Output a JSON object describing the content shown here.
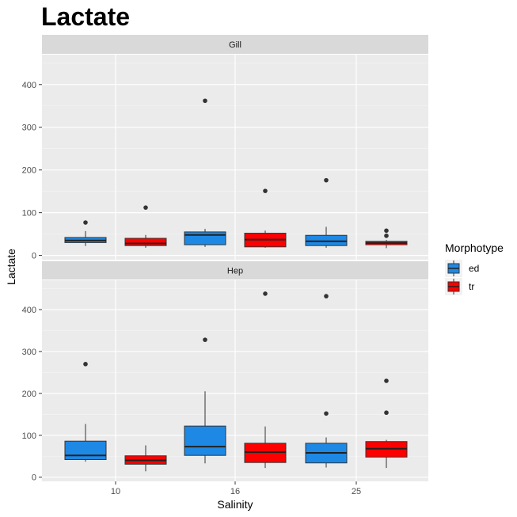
{
  "chart_data": {
    "type": "boxplot",
    "title": "Lactate",
    "xlabel": "Salinity",
    "ylabel": "Lactate",
    "categories": [
      "10",
      "16",
      "25"
    ],
    "ylim": [
      -10,
      470
    ],
    "yticks": [
      0,
      100,
      200,
      300,
      400
    ],
    "grid": true,
    "legend": {
      "title": "Morphotype",
      "position": "right",
      "entries": [
        {
          "name": "ed",
          "color": "#1E88E5"
        },
        {
          "name": "tr",
          "color": "#FF0000"
        }
      ]
    },
    "panels": [
      {
        "name": "Gill",
        "boxes": [
          {
            "x": "10",
            "group": "ed",
            "lower_whisker": 22,
            "q1": 30,
            "median": 35,
            "q3": 42,
            "upper_whisker": 57,
            "outliers": [
              77
            ]
          },
          {
            "x": "10",
            "group": "tr",
            "lower_whisker": 18,
            "q1": 23,
            "median": 28,
            "q3": 40,
            "upper_whisker": 48,
            "outliers": [
              112
            ]
          },
          {
            "x": "16",
            "group": "ed",
            "lower_whisker": 20,
            "q1": 25,
            "median": 48,
            "q3": 55,
            "upper_whisker": 62,
            "outliers": [
              362
            ]
          },
          {
            "x": "16",
            "group": "tr",
            "lower_whisker": 18,
            "q1": 20,
            "median": 37,
            "q3": 52,
            "upper_whisker": 58,
            "outliers": [
              151
            ]
          },
          {
            "x": "25",
            "group": "ed",
            "lower_whisker": 18,
            "q1": 23,
            "median": 33,
            "q3": 47,
            "upper_whisker": 67,
            "outliers": [
              176
            ]
          },
          {
            "x": "25",
            "group": "tr",
            "lower_whisker": 17,
            "q1": 25,
            "median": 29,
            "q3": 33,
            "upper_whisker": 36,
            "outliers": [
              46,
              58
            ]
          }
        ]
      },
      {
        "name": "Hep",
        "boxes": [
          {
            "x": "10",
            "group": "ed",
            "lower_whisker": 37,
            "q1": 42,
            "median": 52,
            "q3": 86,
            "upper_whisker": 127,
            "outliers": [
              270
            ]
          },
          {
            "x": "10",
            "group": "tr",
            "lower_whisker": 14,
            "q1": 31,
            "median": 40,
            "q3": 51,
            "upper_whisker": 76,
            "outliers": []
          },
          {
            "x": "16",
            "group": "ed",
            "lower_whisker": 33,
            "q1": 52,
            "median": 73,
            "q3": 122,
            "upper_whisker": 205,
            "outliers": [
              328
            ]
          },
          {
            "x": "16",
            "group": "tr",
            "lower_whisker": 22,
            "q1": 35,
            "median": 60,
            "q3": 81,
            "upper_whisker": 121,
            "outliers": [
              438
            ]
          },
          {
            "x": "25",
            "group": "ed",
            "lower_whisker": 23,
            "q1": 34,
            "median": 58,
            "q3": 81,
            "upper_whisker": 95,
            "outliers": [
              152,
              432
            ]
          },
          {
            "x": "25",
            "group": "tr",
            "lower_whisker": 22,
            "q1": 48,
            "median": 68,
            "q3": 85,
            "upper_whisker": 89,
            "outliers": [
              154,
              230
            ]
          }
        ]
      }
    ]
  }
}
